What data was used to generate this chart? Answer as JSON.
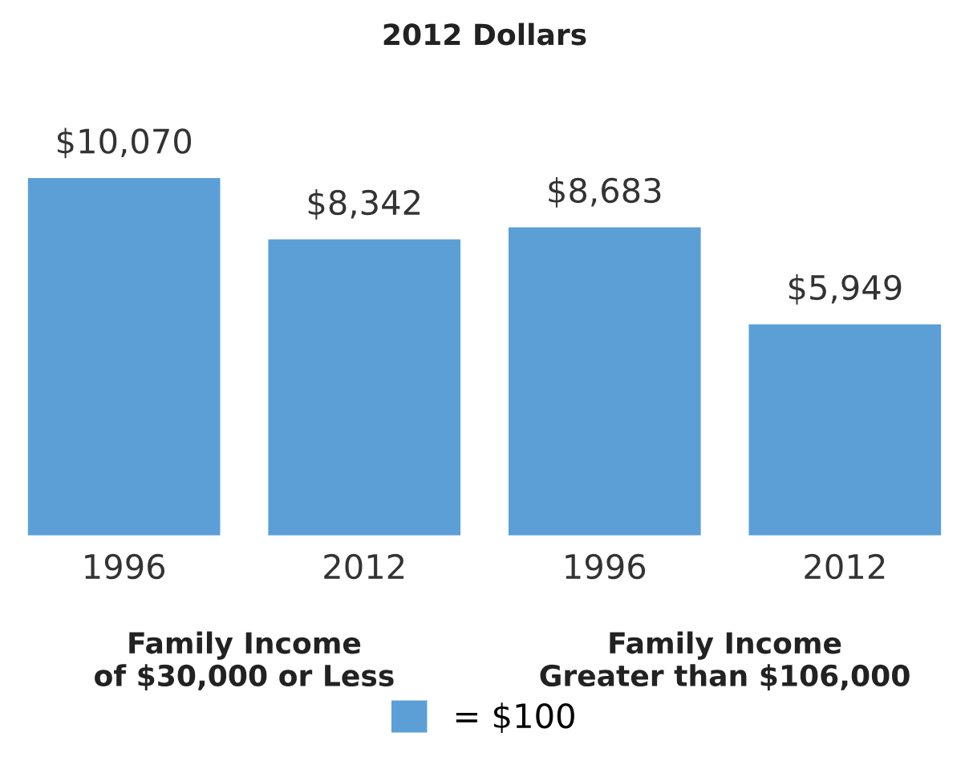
{
  "chart_data": {
    "type": "bar",
    "title": "2012 Dollars",
    "categories": [
      "1996",
      "2012",
      "1996",
      "2012"
    ],
    "series": [
      {
        "name": "= $100",
        "color": "#5b9fd6",
        "values": [
          10070,
          8342,
          8683,
          5949
        ],
        "value_labels": [
          "$10,070",
          "$8,342",
          "$8,683",
          "$5,949"
        ]
      }
    ],
    "annotations": [
      "Family Income\nof $30,000 or Less",
      "Family Income\nGreater than $106,000"
    ],
    "tick_labels": "x",
    "grid": false,
    "legend": "bottom"
  }
}
